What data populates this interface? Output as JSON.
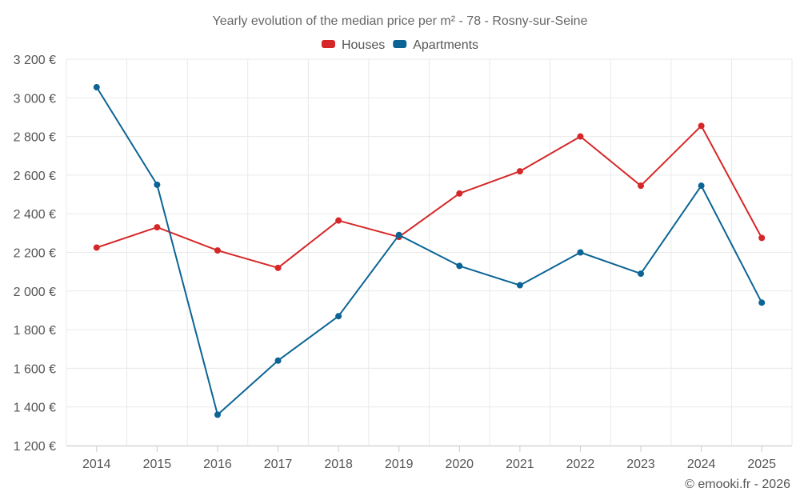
{
  "chart_data": {
    "type": "line",
    "title": "Yearly evolution of the median price per m² - 78 - Rosny-sur-Seine",
    "categories": [
      "2014",
      "2015",
      "2016",
      "2017",
      "2018",
      "2019",
      "2020",
      "2021",
      "2022",
      "2023",
      "2024",
      "2025"
    ],
    "series": [
      {
        "name": "Houses",
        "color": "#d62728",
        "values": [
          2225,
          2330,
          2210,
          2120,
          2365,
          2280,
          2505,
          2620,
          2800,
          2545,
          2855,
          2275
        ]
      },
      {
        "name": "Apartments",
        "color": "#0b6494",
        "values": [
          3055,
          2550,
          1360,
          1640,
          1870,
          2290,
          2130,
          2030,
          2200,
          2090,
          2545,
          1940
        ]
      }
    ],
    "ylim": [
      1200,
      3200
    ],
    "yticks": [
      1200,
      1400,
      1600,
      1800,
      2000,
      2200,
      2400,
      2600,
      2800,
      3000,
      3200
    ],
    "ytick_labels": [
      "1 200 €",
      "1 400 €",
      "1 600 €",
      "1 800 €",
      "2 000 €",
      "2 200 €",
      "2 400 €",
      "2 600 €",
      "2 800 €",
      "3 000 €",
      "3 200 €"
    ],
    "grid": true,
    "legend_position": "top-center",
    "credit": "© emooki.fr - 2026"
  }
}
